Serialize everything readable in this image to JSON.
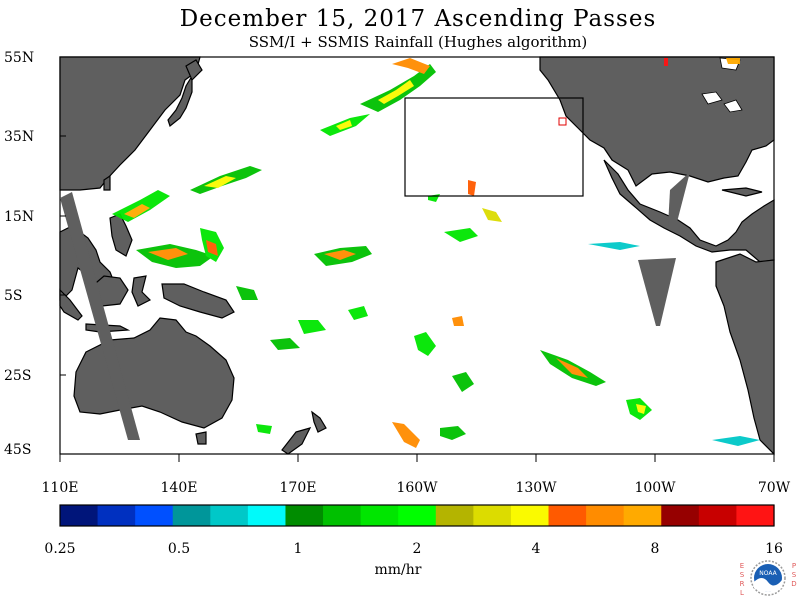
{
  "title": "December 15, 2017  Ascending Passes",
  "subtitle": "SSM/I + SSMIS Rainfall (Hughes algorithm)",
  "map": {
    "lat_labels": [
      "55N",
      "35N",
      "15N",
      "5S",
      "25S",
      "45S"
    ],
    "lon_labels": [
      "110E",
      "140E",
      "170E",
      "160W",
      "130W",
      "100W",
      "70W"
    ],
    "land_color": "#5f5f5f",
    "ocean_color": "#ffffff",
    "outline_color": "#000000",
    "box_region_color": "#000000"
  },
  "colorbar": {
    "colors": [
      "#00157a",
      "#0030c0",
      "#0050ff",
      "#00969a",
      "#00c8c8",
      "#00fafa",
      "#008c00",
      "#00c000",
      "#00e600",
      "#00ff00",
      "#b4b400",
      "#dcdc00",
      "#fafa00",
      "#ff5a00",
      "#ff8c00",
      "#ffaa00",
      "#960000",
      "#c80000",
      "#ff1414"
    ],
    "tick_labels": [
      "0.25",
      "0.5",
      "1",
      "2",
      "4",
      "8",
      "16"
    ],
    "units": "mm/hr"
  },
  "logo": {
    "left_letters": "ESRL",
    "right_letters": "PSD",
    "center_text": "NOAA"
  }
}
